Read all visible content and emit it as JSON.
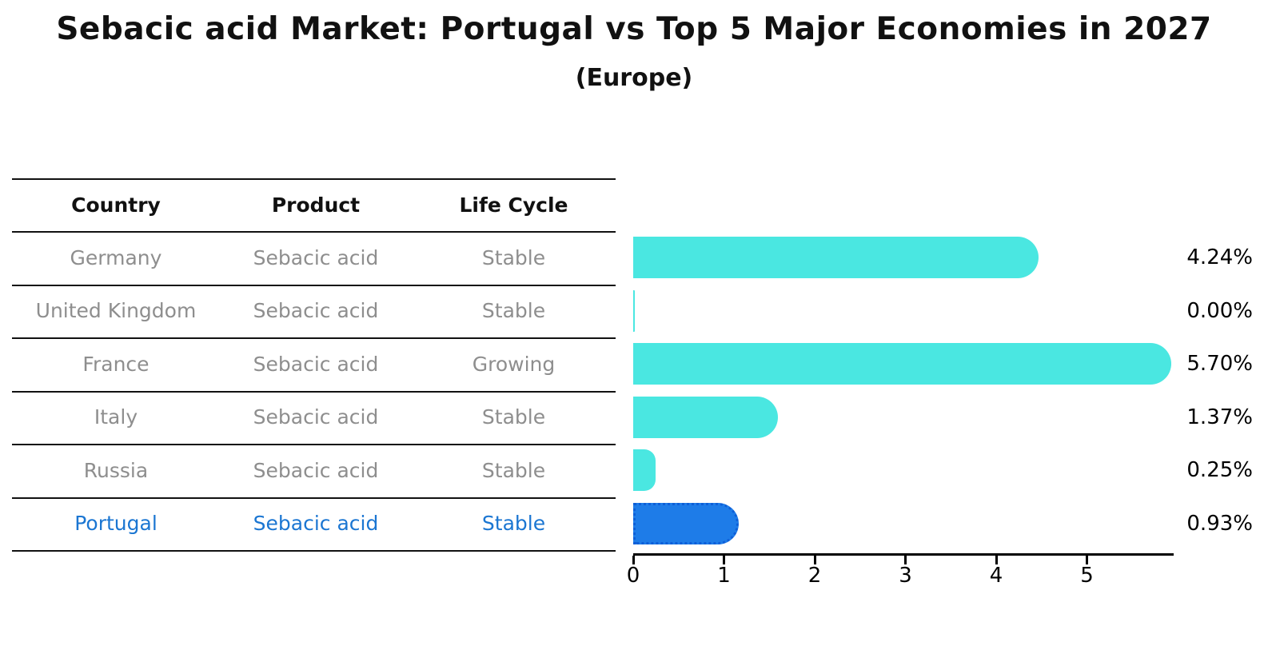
{
  "title": "Sebacic acid Market: Portugal vs Top 5 Major Economies in 2027",
  "subtitle": "(Europe)",
  "table": {
    "headers": [
      "Country",
      "Product",
      "Life Cycle"
    ],
    "rows": [
      {
        "country": "Germany",
        "product": "Sebacic acid",
        "life_cycle": "Stable",
        "highlighted": false
      },
      {
        "country": "United Kingdom",
        "product": "Sebacic acid",
        "life_cycle": "Stable",
        "highlighted": false
      },
      {
        "country": "France",
        "product": "Sebacic acid",
        "life_cycle": "Growing",
        "highlighted": false
      },
      {
        "country": "Italy",
        "product": "Sebacic acid",
        "life_cycle": "Stable",
        "highlighted": false
      },
      {
        "country": "Russia",
        "product": "Sebacic acid",
        "life_cycle": "Stable",
        "highlighted": false
      },
      {
        "country": "Portugal",
        "product": "Sebacic acid",
        "life_cycle": "Stable",
        "highlighted": true
      }
    ]
  },
  "chart_data": {
    "type": "bar",
    "orientation": "horizontal",
    "categories": [
      "Germany",
      "United Kingdom",
      "France",
      "Italy",
      "Russia",
      "Portugal"
    ],
    "values": [
      4.24,
      0.0,
      5.7,
      1.37,
      0.25,
      0.93
    ],
    "value_labels": [
      "4.24%",
      "0.00%",
      "5.70%",
      "1.37%",
      "0.25%",
      "0.93%"
    ],
    "x_ticks": [
      "0",
      "1",
      "2",
      "3",
      "4",
      "5"
    ],
    "xlim": [
      0,
      5.96
    ],
    "grid": false,
    "legend": "none",
    "highlight_index": 5,
    "bar_color": "#4AE7E1",
    "highlight_fill": "#1E7CE8",
    "highlight_border": "#0E5FD8",
    "highlight_text": "#1B76D2",
    "table_text_color": "#8E8E8E"
  }
}
